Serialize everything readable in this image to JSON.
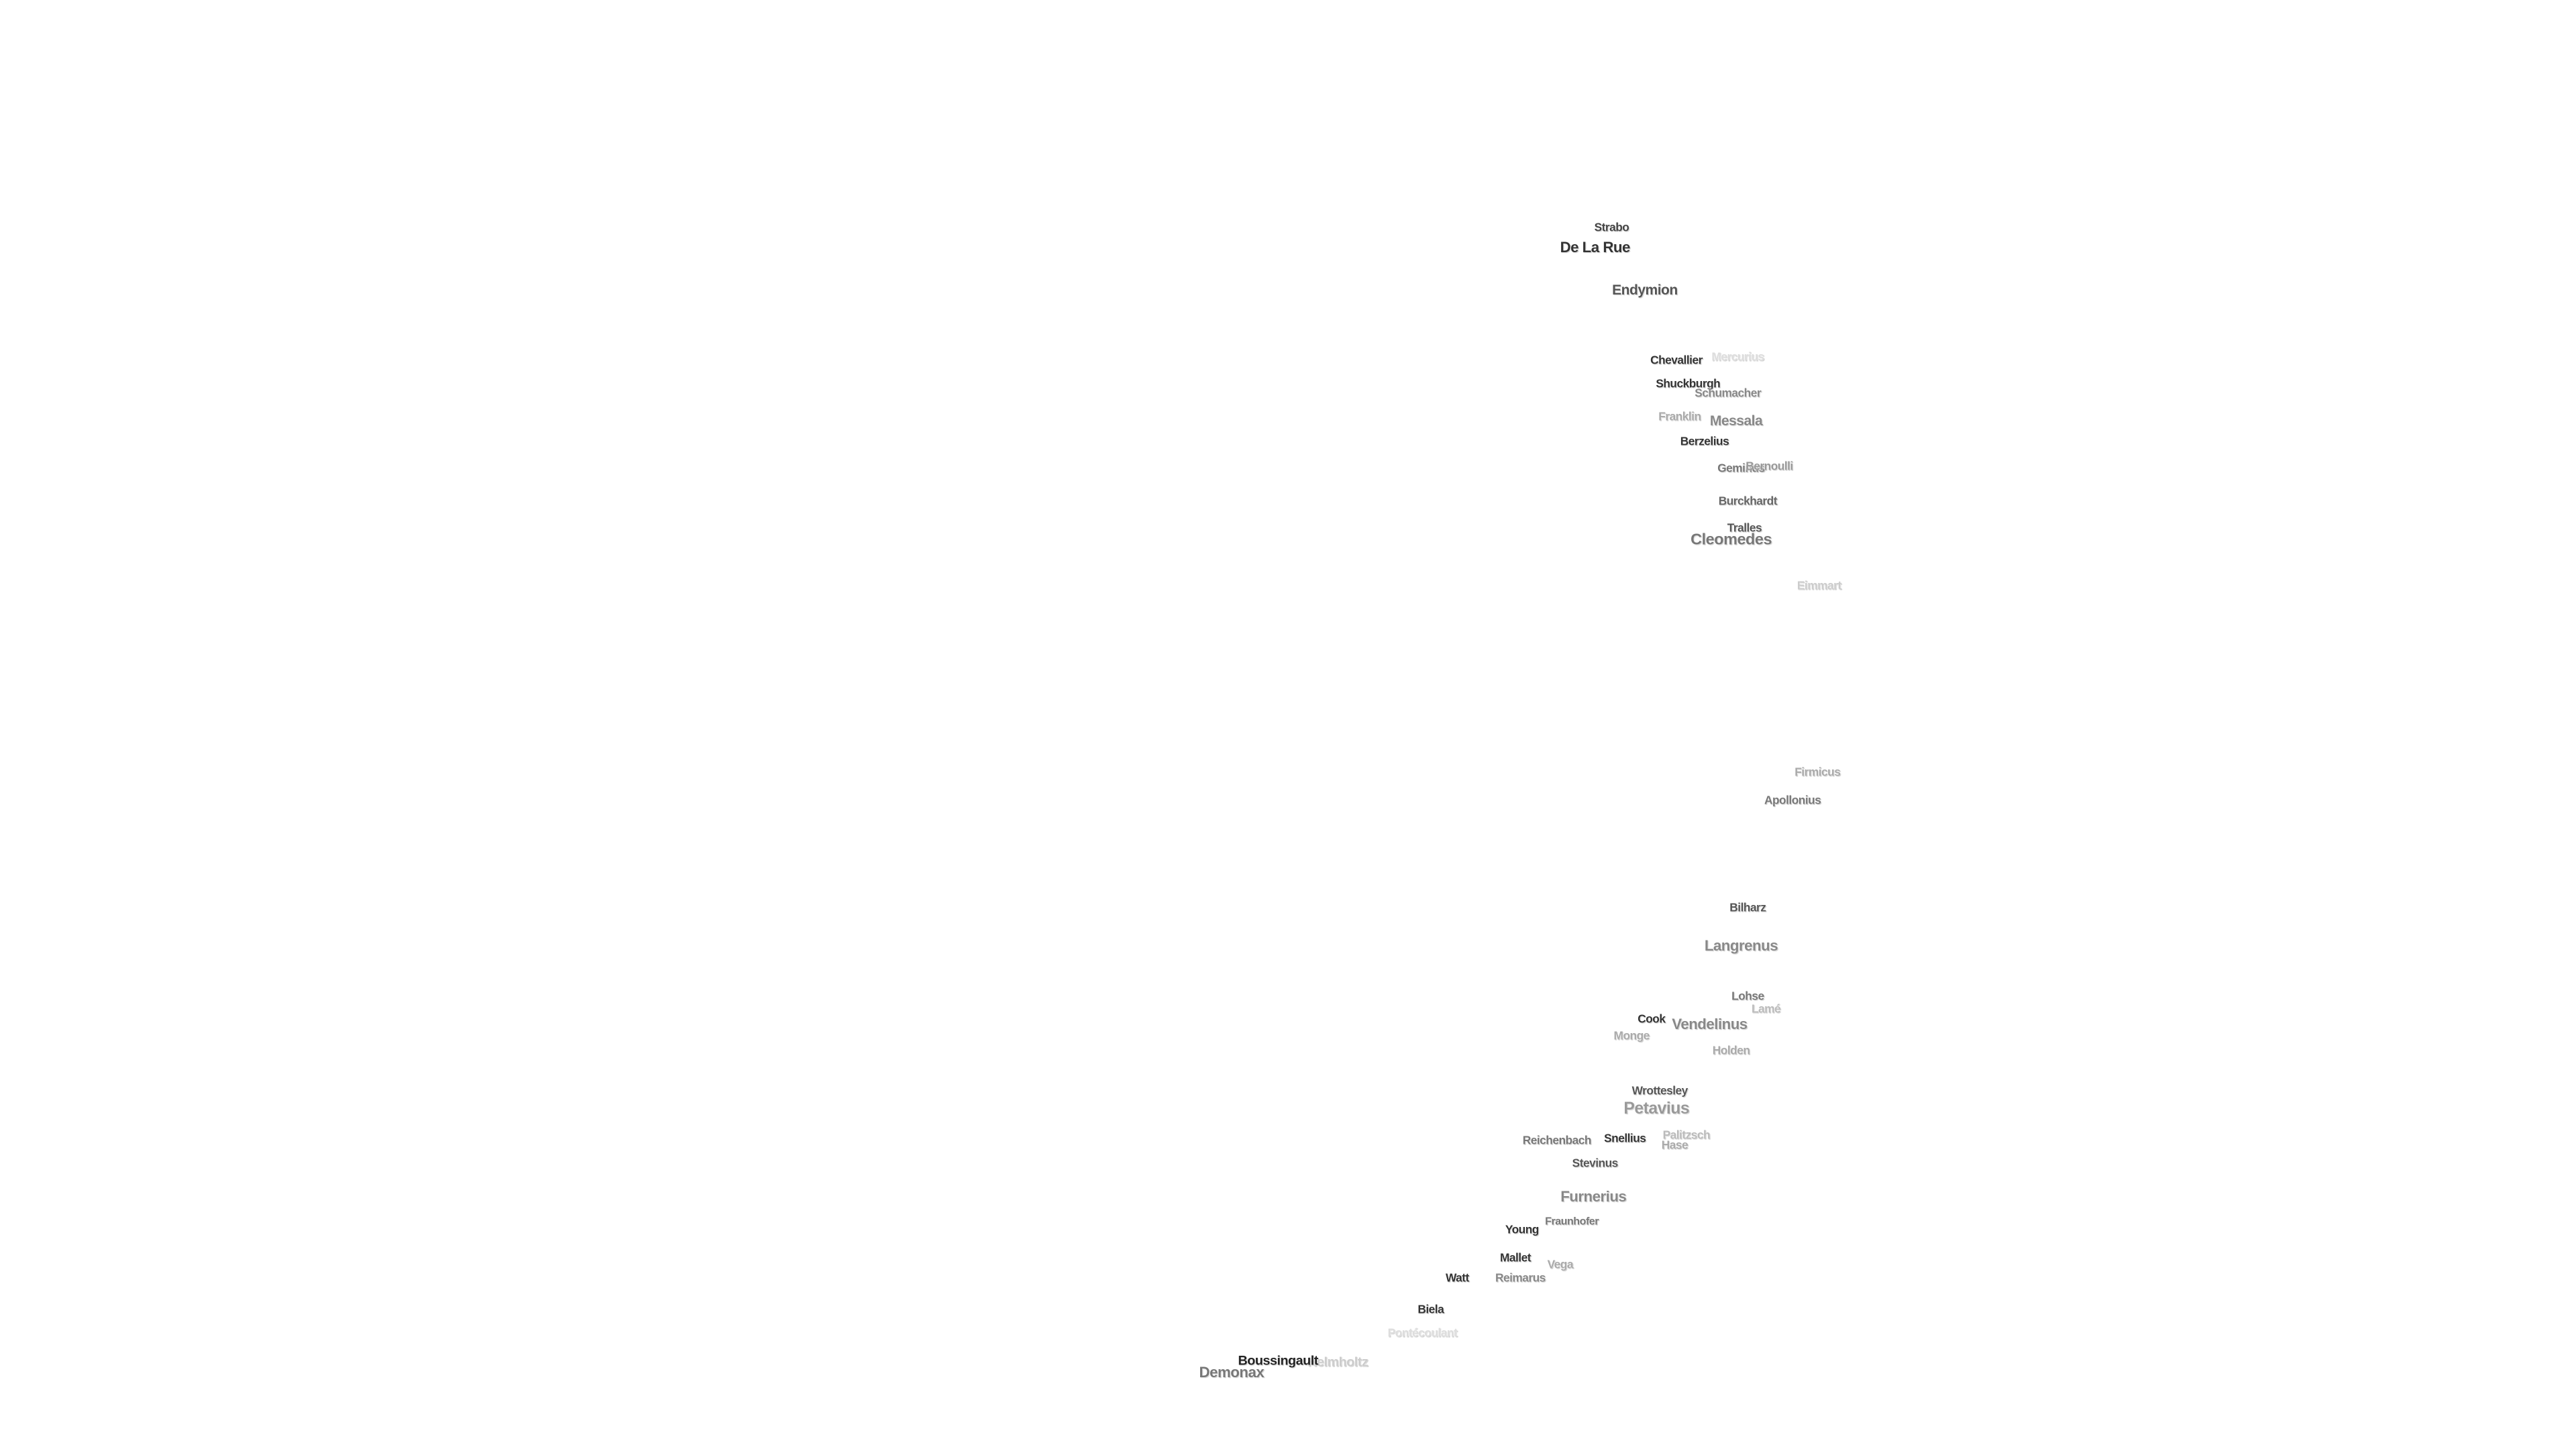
{
  "labels": [
    {
      "text": "Strabo"
    },
    {
      "text": "De La Rue"
    },
    {
      "text": "Endymion"
    },
    {
      "text": "Chevallier"
    },
    {
      "text": "Mercurius"
    },
    {
      "text": "Shuckburgh"
    },
    {
      "text": "Schumacher"
    },
    {
      "text": "Franklin"
    },
    {
      "text": "Messala"
    },
    {
      "text": "Berzelius"
    },
    {
      "text": "Geminus"
    },
    {
      "text": "Bernoulli"
    },
    {
      "text": "Burckhardt"
    },
    {
      "text": "Tralles"
    },
    {
      "text": "Cleomedes"
    },
    {
      "text": "Eimmart"
    },
    {
      "text": "Firmicus"
    },
    {
      "text": "Apollonius"
    },
    {
      "text": "Bilharz"
    },
    {
      "text": "Langrenus"
    },
    {
      "text": "Lohse"
    },
    {
      "text": "Lamé"
    },
    {
      "text": "Cook"
    },
    {
      "text": "Vendelinus"
    },
    {
      "text": "Monge"
    },
    {
      "text": "Holden"
    },
    {
      "text": "Wrottesley"
    },
    {
      "text": "Petavius"
    },
    {
      "text": "Reichenbach"
    },
    {
      "text": "Snellius"
    },
    {
      "text": "Palitzsch"
    },
    {
      "text": "Hase"
    },
    {
      "text": "Stevinus"
    },
    {
      "text": "Furnerius"
    },
    {
      "text": "Fraunhofer"
    },
    {
      "text": "Young"
    },
    {
      "text": "Mallet"
    },
    {
      "text": "Vega"
    },
    {
      "text": "Reimarus"
    },
    {
      "text": "Watt"
    },
    {
      "text": "Biela"
    },
    {
      "text": "Pontécoulant"
    },
    {
      "text": "Helmholtz"
    },
    {
      "text": "Boussingault"
    },
    {
      "text": "Demonax"
    }
  ]
}
